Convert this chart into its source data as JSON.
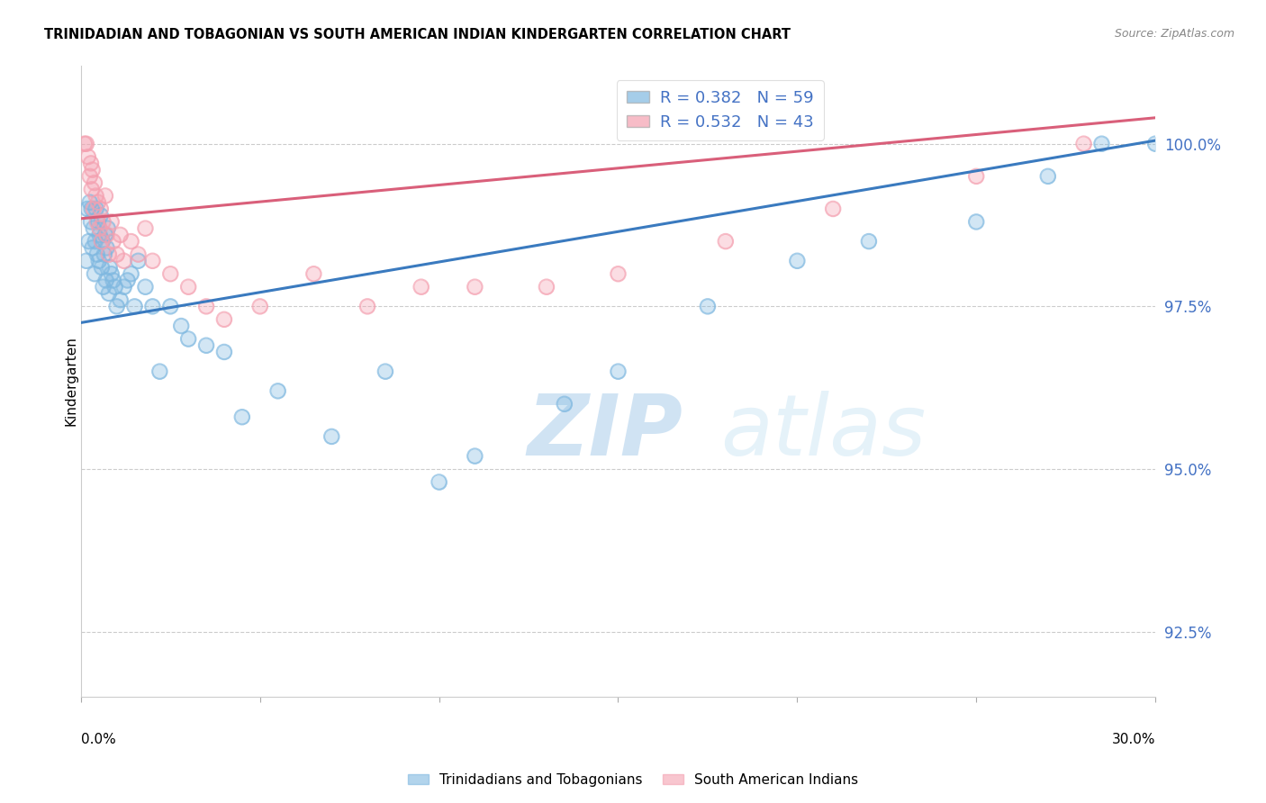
{
  "title": "TRINIDADIAN AND TOBAGONIAN VS SOUTH AMERICAN INDIAN KINDERGARTEN CORRELATION CHART",
  "source": "Source: ZipAtlas.com",
  "ylabel": "Kindergarten",
  "ytick_values": [
    92.5,
    95.0,
    97.5,
    100.0
  ],
  "xmin": 0.0,
  "xmax": 30.0,
  "ymin": 91.5,
  "ymax": 101.2,
  "blue_R": 0.382,
  "blue_N": 59,
  "pink_R": 0.532,
  "pink_N": 43,
  "blue_color": "#7fb8e0",
  "pink_color": "#f4a0b0",
  "blue_line_color": "#3a7abf",
  "pink_line_color": "#d95f7a",
  "legend_label_blue": "Trinidadians and Tobagonians",
  "legend_label_pink": "South American Indians",
  "watermark_zip": "ZIP",
  "watermark_atlas": "atlas",
  "blue_line_x0": 0.0,
  "blue_line_y0": 97.25,
  "blue_line_x1": 30.0,
  "blue_line_y1": 100.05,
  "pink_line_x0": 0.0,
  "pink_line_y0": 98.85,
  "pink_line_x1": 30.0,
  "pink_line_y1": 100.4,
  "blue_scatter_x": [
    0.15,
    0.18,
    0.22,
    0.25,
    0.28,
    0.3,
    0.32,
    0.35,
    0.38,
    0.4,
    0.42,
    0.45,
    0.48,
    0.5,
    0.52,
    0.55,
    0.58,
    0.6,
    0.62,
    0.65,
    0.68,
    0.7,
    0.72,
    0.75,
    0.78,
    0.8,
    0.85,
    0.9,
    0.95,
    1.0,
    1.1,
    1.2,
    1.3,
    1.4,
    1.5,
    1.6,
    1.8,
    2.0,
    2.2,
    2.5,
    2.8,
    3.0,
    3.5,
    4.0,
    4.5,
    5.5,
    7.0,
    8.5,
    10.0,
    11.0,
    13.5,
    15.0,
    17.5,
    20.0,
    22.0,
    25.0,
    27.0,
    28.5,
    30.0
  ],
  "blue_scatter_y": [
    98.2,
    99.0,
    98.5,
    99.1,
    98.8,
    99.0,
    98.4,
    98.7,
    98.0,
    98.5,
    99.0,
    98.3,
    98.8,
    98.2,
    98.6,
    98.9,
    98.1,
    98.5,
    97.8,
    98.3,
    98.6,
    97.9,
    98.4,
    98.7,
    97.7,
    98.1,
    98.0,
    97.9,
    97.8,
    97.5,
    97.6,
    97.8,
    97.9,
    98.0,
    97.5,
    98.2,
    97.8,
    97.5,
    96.5,
    97.5,
    97.2,
    97.0,
    96.9,
    96.8,
    95.8,
    96.2,
    95.5,
    96.5,
    94.8,
    95.2,
    96.0,
    96.5,
    97.5,
    98.2,
    98.5,
    98.8,
    99.5,
    100.0,
    100.0
  ],
  "pink_scatter_x": [
    0.1,
    0.15,
    0.2,
    0.25,
    0.28,
    0.3,
    0.32,
    0.35,
    0.38,
    0.42,
    0.45,
    0.48,
    0.52,
    0.55,
    0.58,
    0.62,
    0.68,
    0.72,
    0.78,
    0.85,
    0.9,
    1.0,
    1.1,
    1.2,
    1.4,
    1.6,
    1.8,
    2.0,
    2.5,
    3.0,
    3.5,
    4.0,
    5.0,
    6.5,
    8.0,
    9.5,
    11.0,
    13.0,
    15.0,
    18.0,
    21.0,
    25.0,
    28.0
  ],
  "pink_scatter_y": [
    100.0,
    100.0,
    99.8,
    99.5,
    99.7,
    99.3,
    99.6,
    99.0,
    99.4,
    99.2,
    98.8,
    99.1,
    98.7,
    99.0,
    98.5,
    98.8,
    99.2,
    98.6,
    98.3,
    98.8,
    98.5,
    98.3,
    98.6,
    98.2,
    98.5,
    98.3,
    98.7,
    98.2,
    98.0,
    97.8,
    97.5,
    97.3,
    97.5,
    98.0,
    97.5,
    97.8,
    97.8,
    97.8,
    98.0,
    98.5,
    99.0,
    99.5,
    100.0
  ]
}
